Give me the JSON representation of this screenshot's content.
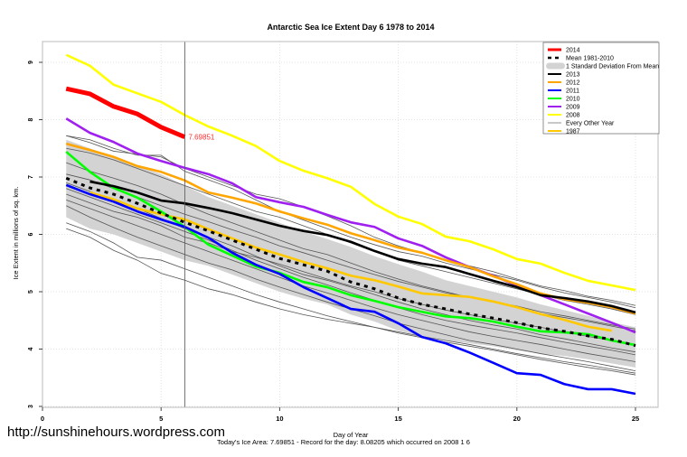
{
  "chart_data": {
    "type": "line",
    "title": "Antarctic Sea Ice Extent Day 6 1978 to 2014",
    "xlabel": "Day of Year",
    "ylabel": "Ice Extent in millions of sq. km.",
    "xlim": [
      0,
      26
    ],
    "ylim": [
      3,
      9.4
    ],
    "xticks": [
      0,
      5,
      10,
      15,
      20,
      25
    ],
    "yticks": [
      3,
      4,
      5,
      6,
      7,
      8,
      9
    ],
    "grid": true,
    "legend_position": "top-right",
    "marker_day": 6,
    "annotation": "7.69851",
    "std_band": {
      "name": "1 Standard Deviation From Mean",
      "color": "#d3d3d3",
      "days": [
        1,
        2,
        3,
        4,
        5,
        6,
        7,
        8,
        9,
        10,
        11,
        12,
        13,
        14,
        15,
        16,
        17,
        18,
        19,
        20,
        21,
        22,
        23,
        24,
        25
      ],
      "upper": [
        7.65,
        7.5,
        7.35,
        7.2,
        7.05,
        6.85,
        6.65,
        6.5,
        6.35,
        6.2,
        6.05,
        5.92,
        5.78,
        5.62,
        5.48,
        5.35,
        5.2,
        5.1,
        5.0,
        4.9,
        4.78,
        4.68,
        4.58,
        4.47,
        4.38
      ],
      "lower": [
        6.3,
        6.1,
        6.0,
        5.85,
        5.7,
        5.55,
        5.45,
        5.3,
        5.15,
        5.0,
        4.88,
        4.78,
        4.6,
        4.48,
        4.32,
        4.22,
        4.15,
        4.1,
        4.05,
        3.98,
        3.92,
        3.88,
        3.82,
        3.75,
        3.68
      ]
    },
    "other_years": {
      "name": "Every Other Year",
      "color": "#555555",
      "lines": [
        [
          7.72,
          7.65,
          7.5,
          7.38,
          7.38,
          7.1,
          6.95,
          6.8,
          6.6,
          6.4,
          6.25,
          6.1,
          5.95,
          5.82,
          5.7,
          5.62,
          5.5,
          5.4,
          5.3,
          5.2,
          5.08,
          4.98,
          4.9,
          4.82,
          4.72
        ],
        [
          7.5,
          7.42,
          7.3,
          7.15,
          7.0,
          6.85,
          6.7,
          6.55,
          6.4,
          6.3,
          6.15,
          6.0,
          5.85,
          5.7,
          5.55,
          5.45,
          5.35,
          5.25,
          5.15,
          5.05,
          4.95,
          4.85,
          4.78,
          4.7,
          4.6
        ],
        [
          7.25,
          7.1,
          6.98,
          6.85,
          6.7,
          6.52,
          6.35,
          6.2,
          6.05,
          5.9,
          5.75,
          5.65,
          5.5,
          5.35,
          5.22,
          5.1,
          5.0,
          4.9,
          4.82,
          4.75,
          4.65,
          4.58,
          4.5,
          4.42,
          4.35
        ],
        [
          6.8,
          6.65,
          6.5,
          6.35,
          6.2,
          6.05,
          5.9,
          5.72,
          5.55,
          5.4,
          5.25,
          5.12,
          4.98,
          4.85,
          4.72,
          4.6,
          4.5,
          4.42,
          4.35,
          4.28,
          4.2,
          4.12,
          4.05,
          3.98,
          3.9
        ],
        [
          6.6,
          6.45,
          6.3,
          6.15,
          6.0,
          5.85,
          5.7,
          5.55,
          5.4,
          5.25,
          5.1,
          4.98,
          4.85,
          4.72,
          4.6,
          4.5,
          4.4,
          4.3,
          4.22,
          4.15,
          4.08,
          4.0,
          3.92,
          3.85,
          3.78
        ],
        [
          6.5,
          6.3,
          6.12,
          5.95,
          5.8,
          5.65,
          5.5,
          5.38,
          5.22,
          5.08,
          4.95,
          4.82,
          4.7,
          4.58,
          4.45,
          4.35,
          4.25,
          4.15,
          4.08,
          4.0,
          3.92,
          3.85,
          3.78,
          3.7,
          3.62
        ],
        [
          6.2,
          6.05,
          5.85,
          5.6,
          5.55,
          5.4,
          5.25,
          5.1,
          4.95,
          4.82,
          4.7,
          4.58,
          4.48,
          4.38,
          4.28,
          4.2,
          4.12,
          4.05,
          3.98,
          3.9,
          3.82,
          3.75,
          3.68,
          3.62,
          3.55
        ],
        [
          6.1,
          5.95,
          5.72,
          5.55,
          5.32,
          5.2,
          5.05,
          4.95,
          4.82,
          4.7,
          4.6,
          4.52,
          4.45,
          4.38,
          4.3,
          4.22,
          4.15,
          4.08,
          4.0,
          3.92,
          3.85,
          3.78,
          3.72,
          3.65,
          3.58
        ],
        [
          6.7,
          6.55,
          6.4,
          6.3,
          6.15,
          5.95,
          5.85,
          5.7,
          5.6,
          5.48,
          5.35,
          5.22,
          5.1,
          5.0,
          4.88,
          4.78,
          4.68,
          4.6,
          4.52,
          4.45,
          4.38,
          4.3,
          4.22,
          4.15,
          4.08
        ],
        [
          7.05,
          6.95,
          6.8,
          6.65,
          6.5,
          6.35,
          6.22,
          6.08,
          5.95,
          5.8,
          5.68,
          5.55,
          5.42,
          5.3,
          5.18,
          5.08,
          4.98,
          4.9,
          4.82,
          4.72,
          4.62,
          4.55,
          4.48,
          4.4,
          4.32
        ],
        [
          6.9,
          6.75,
          6.58,
          6.45,
          6.28,
          6.1,
          5.95,
          5.8,
          5.62,
          5.45,
          5.3,
          5.2,
          5.08,
          4.95,
          4.82,
          4.7,
          4.6,
          4.5,
          4.42,
          4.35,
          4.25,
          4.18,
          4.1,
          4.02,
          3.95
        ],
        [
          7.72,
          7.6,
          7.45,
          7.4,
          7.35,
          7.15,
          7.0,
          6.85,
          6.7,
          6.62,
          6.48,
          6.32,
          6.15,
          5.95,
          5.8,
          5.68,
          5.55,
          5.45,
          5.35,
          5.22,
          5.1,
          5.02,
          4.92,
          4.85,
          4.76
        ]
      ]
    },
    "series": [
      {
        "name": "1987",
        "color": "#ffc800",
        "start_day": 2,
        "values": [
          6.73,
          6.61,
          6.45,
          6.35,
          6.26,
          6.09,
          5.93,
          5.77,
          5.65,
          5.52,
          5.41,
          5.28,
          5.2,
          5.09,
          4.97,
          4.94,
          4.91,
          4.83,
          4.73,
          4.61,
          4.51,
          4.39,
          4.32
        ]
      },
      {
        "name": "2008",
        "color": "#ffff00",
        "start_day": 1,
        "values": [
          9.13,
          8.94,
          8.61,
          8.46,
          8.31,
          8.08,
          7.88,
          7.72,
          7.54,
          7.28,
          7.11,
          6.98,
          6.83,
          6.53,
          6.31,
          6.18,
          5.96,
          5.88,
          5.74,
          5.57,
          5.49,
          5.33,
          5.19,
          5.11,
          5.03
        ]
      },
      {
        "name": "2009",
        "color": "#a020f0",
        "start_day": 1,
        "values": [
          8.02,
          7.77,
          7.61,
          7.41,
          7.28,
          7.16,
          7.05,
          6.89,
          6.65,
          6.56,
          6.48,
          6.34,
          6.21,
          6.13,
          5.93,
          5.8,
          5.6,
          5.43,
          5.28,
          5.11,
          4.94,
          4.78,
          4.62,
          4.46,
          4.29
        ]
      },
      {
        "name": "2010",
        "color": "#00ff00",
        "start_day": 1,
        "values": [
          7.44,
          7.09,
          6.81,
          6.64,
          6.4,
          6.13,
          5.82,
          5.63,
          5.44,
          5.33,
          5.17,
          5.08,
          4.94,
          4.84,
          4.73,
          4.65,
          4.57,
          4.54,
          4.48,
          4.39,
          4.31,
          4.29,
          4.26,
          4.15,
          4.07
        ]
      },
      {
        "name": "2011",
        "color": "#0000ff",
        "start_day": 1,
        "values": [
          6.86,
          6.7,
          6.57,
          6.4,
          6.26,
          6.13,
          5.94,
          5.68,
          5.47,
          5.31,
          5.08,
          4.89,
          4.7,
          4.65,
          4.45,
          4.21,
          4.1,
          3.94,
          3.76,
          3.58,
          3.55,
          3.39,
          3.3,
          3.3,
          3.22
        ]
      },
      {
        "name": "2012",
        "color": "#ffa500",
        "start_day": 1,
        "values": [
          7.58,
          7.47,
          7.35,
          7.19,
          7.09,
          6.94,
          6.73,
          6.64,
          6.54,
          6.4,
          6.28,
          6.17,
          6.02,
          5.9,
          5.77,
          5.68,
          5.55,
          5.43,
          5.27,
          5.13,
          4.97,
          4.87,
          4.81,
          4.73,
          4.62
        ]
      },
      {
        "name": "2013",
        "color": "#000000",
        "start_day": 2,
        "values": [
          6.92,
          6.84,
          6.73,
          6.59,
          6.54,
          6.46,
          6.37,
          6.26,
          6.15,
          6.06,
          5.99,
          5.87,
          5.71,
          5.57,
          5.49,
          5.43,
          5.31,
          5.19,
          5.08,
          4.94,
          4.89,
          4.83,
          4.75,
          4.64
        ]
      },
      {
        "name": "Mean 1981-2010",
        "color": "#000000",
        "dashed": true,
        "start_day": 1,
        "values": [
          6.98,
          6.81,
          6.7,
          6.54,
          6.37,
          6.21,
          6.06,
          5.9,
          5.74,
          5.58,
          5.47,
          5.36,
          5.17,
          5.05,
          4.89,
          4.78,
          4.7,
          4.61,
          4.54,
          4.46,
          4.37,
          4.31,
          4.23,
          4.17,
          4.06
        ]
      },
      {
        "name": "2014",
        "color": "#ff0000",
        "start_day": 1,
        "values": [
          8.54,
          8.45,
          8.23,
          8.1,
          7.87,
          7.69851
        ]
      }
    ],
    "legend": [
      "2014",
      "Mean 1981-2010",
      "1 Standard Deviation From Mean",
      "2013",
      "2012",
      "2011",
      "2010",
      "2009",
      "2008",
      "Every Other Year",
      "1987"
    ]
  },
  "footer": {
    "url": "http://sunshinehours.wordpress.com",
    "summary": "Today's Ice Area: 7.69851  - Record for the day: 8.08205 which occurred on 2008 1 6"
  }
}
